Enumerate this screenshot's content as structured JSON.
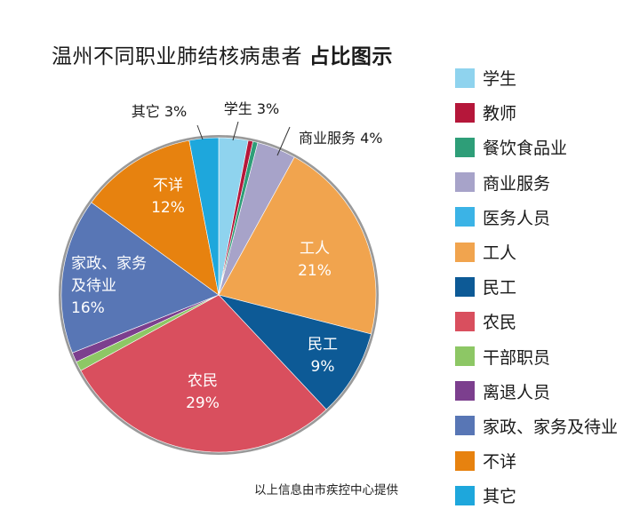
{
  "title": {
    "main": "温州不同职业肺结核病患者",
    "suffix": "占比图示"
  },
  "source_note": "以上信息由市疾控中心提供",
  "chart_data": {
    "type": "pie",
    "title": "温州不同职业肺结核病患者 占比图示",
    "legend_position": "right",
    "slices": [
      {
        "name": "学生",
        "value": 3,
        "color": "#8fd3ee",
        "label": "学生 3%"
      },
      {
        "name": "教师",
        "value": 0.5,
        "color": "#b5173a",
        "label": ""
      },
      {
        "name": "餐饮食品业",
        "value": 0.5,
        "color": "#2e9e78",
        "label": ""
      },
      {
        "name": "商业服务",
        "value": 4,
        "color": "#a7a3c9",
        "label": "商业服务 4%"
      },
      {
        "name": "医务人员",
        "value": 0,
        "color": "#3bb3e6",
        "label": ""
      },
      {
        "name": "工人",
        "value": 21,
        "color": "#f1a44e",
        "label": "工人\n21%"
      },
      {
        "name": "民工",
        "value": 9,
        "color": "#0d5a96",
        "label": "民工\n9%"
      },
      {
        "name": "农民",
        "value": 29,
        "color": "#d94f5e",
        "label": "农民\n29%"
      },
      {
        "name": "干部职员",
        "value": 1,
        "color": "#8dc765",
        "label": ""
      },
      {
        "name": "离退人员",
        "value": 1,
        "color": "#7c3f8e",
        "label": ""
      },
      {
        "name": "家政、家务及待业",
        "value": 16,
        "color": "#5876b5",
        "label": "家政、家务\n及待业\n16%"
      },
      {
        "name": "不详",
        "value": 12,
        "color": "#e7820f",
        "label": "不详\n12%"
      },
      {
        "name": "其它",
        "value": 3,
        "color": "#1ea7dc",
        "label": "其它 3%"
      }
    ]
  }
}
